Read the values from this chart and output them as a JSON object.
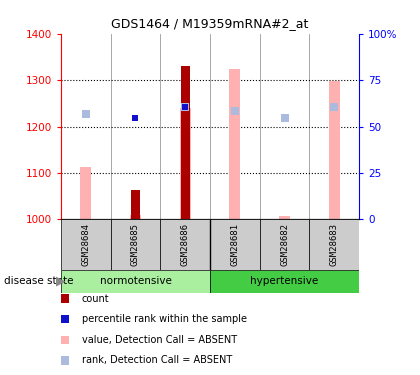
{
  "title": "GDS1464 / M19359mRNA#2_at",
  "samples": [
    "GSM28684",
    "GSM28685",
    "GSM28686",
    "GSM28681",
    "GSM28682",
    "GSM28683"
  ],
  "ylim_left": [
    1000,
    1400
  ],
  "ylim_right": [
    0,
    100
  ],
  "yticks_left": [
    1000,
    1100,
    1200,
    1300,
    1400
  ],
  "yticks_right": [
    0,
    25,
    50,
    75,
    100
  ],
  "right_tick_labels": [
    "0",
    "25",
    "50",
    "75",
    "100%"
  ],
  "dark_red_bar_values": [
    null,
    1063,
    1330,
    null,
    null,
    null
  ],
  "dark_red_bar_color": "#AA0000",
  "pink_bar_values": [
    1113,
    1010,
    1240,
    1325,
    1008,
    1298
  ],
  "pink_bar_color": "#FFB0B0",
  "blue_sq_values": [
    null,
    1218,
    1242,
    null,
    null,
    null
  ],
  "light_blue_sq_values": [
    1226,
    null,
    1242,
    1234,
    1218,
    1242
  ],
  "blue_color": "#1111CC",
  "light_blue_color": "#AABBDD",
  "normotensive_color": "#AAEEA0",
  "hypertensive_color": "#44CC44",
  "sample_box_color": "#CCCCCC",
  "legend_items": [
    {
      "label": "count",
      "color": "#AA0000"
    },
    {
      "label": "percentile rank within the sample",
      "color": "#1111CC"
    },
    {
      "label": "value, Detection Call = ABSENT",
      "color": "#FFB0B0"
    },
    {
      "label": "rank, Detection Call = ABSENT",
      "color": "#AABBDD"
    }
  ],
  "pink_bar_width": 0.22,
  "dark_red_bar_width": 0.18,
  "hgrid_values": [
    1100,
    1200,
    1300
  ]
}
